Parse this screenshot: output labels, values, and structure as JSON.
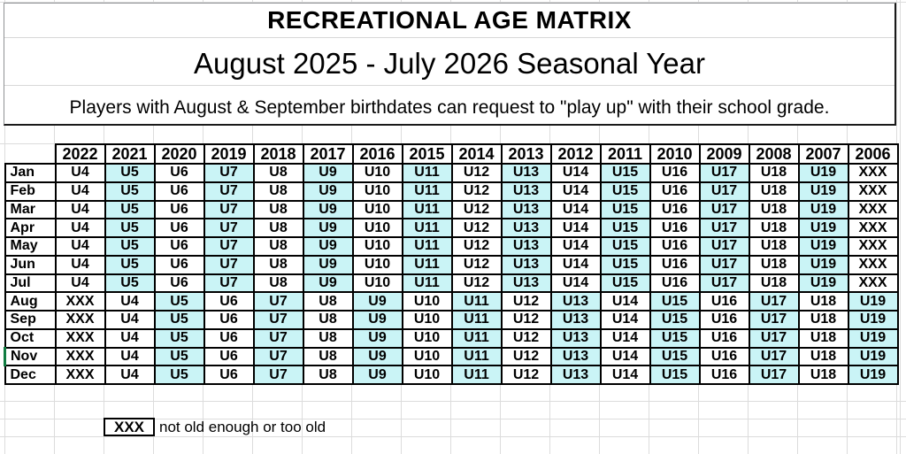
{
  "header": {
    "title": "RECREATIONAL AGE MATRIX",
    "subtitle": "August 2025 - July 2026 Seasonal Year",
    "note": "Players with August & September birthdates can request to \"play up\" with their school grade."
  },
  "table": {
    "year_headers": [
      "2022",
      "2021",
      "2020",
      "2019",
      "2018",
      "2017",
      "2016",
      "2015",
      "2014",
      "2013",
      "2012",
      "2011",
      "2010",
      "2009",
      "2008",
      "2007",
      "2006"
    ],
    "selected_month": "Nov",
    "rows": [
      {
        "month": "Jan",
        "cells": [
          [
            "U4",
            0
          ],
          [
            "U5",
            1
          ],
          [
            "U6",
            0
          ],
          [
            "U7",
            1
          ],
          [
            "U8",
            0
          ],
          [
            "U9",
            1
          ],
          [
            "U10",
            0
          ],
          [
            "U11",
            1
          ],
          [
            "U12",
            0
          ],
          [
            "U13",
            1
          ],
          [
            "U14",
            0
          ],
          [
            "U15",
            1
          ],
          [
            "U16",
            0
          ],
          [
            "U17",
            1
          ],
          [
            "U18",
            0
          ],
          [
            "U19",
            1
          ],
          [
            "XXX",
            0
          ]
        ]
      },
      {
        "month": "Feb",
        "cells": [
          [
            "U4",
            0
          ],
          [
            "U5",
            1
          ],
          [
            "U6",
            0
          ],
          [
            "U7",
            1
          ],
          [
            "U8",
            0
          ],
          [
            "U9",
            1
          ],
          [
            "U10",
            0
          ],
          [
            "U11",
            1
          ],
          [
            "U12",
            0
          ],
          [
            "U13",
            1
          ],
          [
            "U14",
            0
          ],
          [
            "U15",
            1
          ],
          [
            "U16",
            0
          ],
          [
            "U17",
            1
          ],
          [
            "U18",
            0
          ],
          [
            "U19",
            1
          ],
          [
            "XXX",
            0
          ]
        ]
      },
      {
        "month": "Mar",
        "cells": [
          [
            "U4",
            0
          ],
          [
            "U5",
            1
          ],
          [
            "U6",
            0
          ],
          [
            "U7",
            1
          ],
          [
            "U8",
            0
          ],
          [
            "U9",
            1
          ],
          [
            "U10",
            0
          ],
          [
            "U11",
            1
          ],
          [
            "U12",
            0
          ],
          [
            "U13",
            1
          ],
          [
            "U14",
            0
          ],
          [
            "U15",
            1
          ],
          [
            "U16",
            0
          ],
          [
            "U17",
            1
          ],
          [
            "U18",
            0
          ],
          [
            "U19",
            1
          ],
          [
            "XXX",
            0
          ]
        ]
      },
      {
        "month": "Apr",
        "cells": [
          [
            "U4",
            0
          ],
          [
            "U5",
            1
          ],
          [
            "U6",
            0
          ],
          [
            "U7",
            1
          ],
          [
            "U8",
            0
          ],
          [
            "U9",
            1
          ],
          [
            "U10",
            0
          ],
          [
            "U11",
            1
          ],
          [
            "U12",
            0
          ],
          [
            "U13",
            1
          ],
          [
            "U14",
            0
          ],
          [
            "U15",
            1
          ],
          [
            "U16",
            0
          ],
          [
            "U17",
            1
          ],
          [
            "U18",
            0
          ],
          [
            "U19",
            1
          ],
          [
            "XXX",
            0
          ]
        ]
      },
      {
        "month": "May",
        "cells": [
          [
            "U4",
            0
          ],
          [
            "U5",
            1
          ],
          [
            "U6",
            0
          ],
          [
            "U7",
            1
          ],
          [
            "U8",
            0
          ],
          [
            "U9",
            1
          ],
          [
            "U10",
            0
          ],
          [
            "U11",
            1
          ],
          [
            "U12",
            0
          ],
          [
            "U13",
            1
          ],
          [
            "U14",
            0
          ],
          [
            "U15",
            1
          ],
          [
            "U16",
            0
          ],
          [
            "U17",
            1
          ],
          [
            "U18",
            0
          ],
          [
            "U19",
            1
          ],
          [
            "XXX",
            0
          ]
        ]
      },
      {
        "month": "Jun",
        "cells": [
          [
            "U4",
            0
          ],
          [
            "U5",
            1
          ],
          [
            "U6",
            0
          ],
          [
            "U7",
            1
          ],
          [
            "U8",
            0
          ],
          [
            "U9",
            1
          ],
          [
            "U10",
            0
          ],
          [
            "U11",
            1
          ],
          [
            "U12",
            0
          ],
          [
            "U13",
            1
          ],
          [
            "U14",
            0
          ],
          [
            "U15",
            1
          ],
          [
            "U16",
            0
          ],
          [
            "U17",
            1
          ],
          [
            "U18",
            0
          ],
          [
            "U19",
            1
          ],
          [
            "XXX",
            0
          ]
        ]
      },
      {
        "month": "Jul",
        "cells": [
          [
            "U4",
            0
          ],
          [
            "U5",
            1
          ],
          [
            "U6",
            0
          ],
          [
            "U7",
            1
          ],
          [
            "U8",
            0
          ],
          [
            "U9",
            1
          ],
          [
            "U10",
            0
          ],
          [
            "U11",
            1
          ],
          [
            "U12",
            0
          ],
          [
            "U13",
            1
          ],
          [
            "U14",
            0
          ],
          [
            "U15",
            1
          ],
          [
            "U16",
            0
          ],
          [
            "U17",
            1
          ],
          [
            "U18",
            0
          ],
          [
            "U19",
            1
          ],
          [
            "XXX",
            0
          ]
        ]
      },
      {
        "month": "Aug",
        "cells": [
          [
            "XXX",
            0
          ],
          [
            "U4",
            0
          ],
          [
            "U5",
            1
          ],
          [
            "U6",
            0
          ],
          [
            "U7",
            1
          ],
          [
            "U8",
            0
          ],
          [
            "U9",
            1
          ],
          [
            "U10",
            0
          ],
          [
            "U11",
            1
          ],
          [
            "U12",
            0
          ],
          [
            "U13",
            1
          ],
          [
            "U14",
            0
          ],
          [
            "U15",
            1
          ],
          [
            "U16",
            0
          ],
          [
            "U17",
            1
          ],
          [
            "U18",
            0
          ],
          [
            "U19",
            1
          ]
        ]
      },
      {
        "month": "Sep",
        "cells": [
          [
            "XXX",
            0
          ],
          [
            "U4",
            0
          ],
          [
            "U5",
            1
          ],
          [
            "U6",
            0
          ],
          [
            "U7",
            1
          ],
          [
            "U8",
            0
          ],
          [
            "U9",
            1
          ],
          [
            "U10",
            0
          ],
          [
            "U11",
            1
          ],
          [
            "U12",
            0
          ],
          [
            "U13",
            1
          ],
          [
            "U14",
            0
          ],
          [
            "U15",
            1
          ],
          [
            "U16",
            0
          ],
          [
            "U17",
            1
          ],
          [
            "U18",
            0
          ],
          [
            "U19",
            1
          ]
        ]
      },
      {
        "month": "Oct",
        "cells": [
          [
            "XXX",
            0
          ],
          [
            "U4",
            0
          ],
          [
            "U5",
            1
          ],
          [
            "U6",
            0
          ],
          [
            "U7",
            1
          ],
          [
            "U8",
            0
          ],
          [
            "U9",
            1
          ],
          [
            "U10",
            0
          ],
          [
            "U11",
            1
          ],
          [
            "U12",
            0
          ],
          [
            "U13",
            1
          ],
          [
            "U14",
            0
          ],
          [
            "U15",
            1
          ],
          [
            "U16",
            0
          ],
          [
            "U17",
            1
          ],
          [
            "U18",
            0
          ],
          [
            "U19",
            1
          ]
        ]
      },
      {
        "month": "Nov",
        "cells": [
          [
            "XXX",
            0
          ],
          [
            "U4",
            0
          ],
          [
            "U5",
            1
          ],
          [
            "U6",
            0
          ],
          [
            "U7",
            1
          ],
          [
            "U8",
            0
          ],
          [
            "U9",
            1
          ],
          [
            "U10",
            0
          ],
          [
            "U11",
            1
          ],
          [
            "U12",
            0
          ],
          [
            "U13",
            1
          ],
          [
            "U14",
            0
          ],
          [
            "U15",
            1
          ],
          [
            "U16",
            0
          ],
          [
            "U17",
            1
          ],
          [
            "U18",
            0
          ],
          [
            "U19",
            1
          ]
        ]
      },
      {
        "month": "Dec",
        "cells": [
          [
            "XXX",
            0
          ],
          [
            "U4",
            0
          ],
          [
            "U5",
            1
          ],
          [
            "U6",
            0
          ],
          [
            "U7",
            1
          ],
          [
            "U8",
            0
          ],
          [
            "U9",
            1
          ],
          [
            "U10",
            0
          ],
          [
            "U11",
            1
          ],
          [
            "U12",
            0
          ],
          [
            "U13",
            1
          ],
          [
            "U14",
            0
          ],
          [
            "U15",
            1
          ],
          [
            "U16",
            0
          ],
          [
            "U17",
            1
          ],
          [
            "U18",
            0
          ],
          [
            "U19",
            1
          ]
        ]
      }
    ]
  },
  "legend": {
    "key": "XXX",
    "label": "not old enough or too old"
  },
  "colors": {
    "highlight": "#CAF4F6",
    "grid": "#DCDCDC",
    "selection": "#107C41"
  }
}
